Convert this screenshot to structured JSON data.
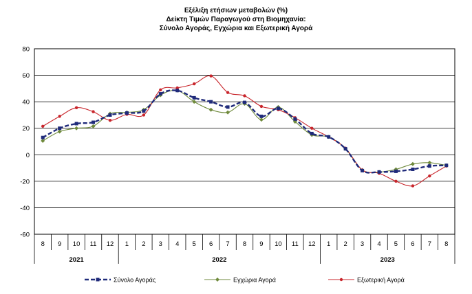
{
  "chart_data": {
    "type": "line",
    "title": [
      "Εξέλιξη ετήσιων μεταβολών (%)",
      "Δείκτη Τιμών Παραγωγού στη Βιομηχανία:",
      "Σύνολο Αγοράς, Εγχώρια και Εξωτερική Αγορά"
    ],
    "xlabel": "",
    "ylabel": "",
    "ylim": [
      -60,
      80
    ],
    "yticks": [
      "80",
      "60",
      "40",
      "20",
      "0",
      "-20",
      "-40",
      "-60"
    ],
    "grid": true,
    "legend": "bottom",
    "categories": [
      "8",
      "9",
      "10",
      "11",
      "12",
      "1",
      "2",
      "3",
      "4",
      "5",
      "6",
      "7",
      "8",
      "9",
      "10",
      "11",
      "12",
      "1",
      "2",
      "3",
      "4",
      "5",
      "6",
      "7",
      "8"
    ],
    "year_groups": [
      {
        "label": "2021",
        "count": 5
      },
      {
        "label": "2022",
        "count": 12
      },
      {
        "label": "2023",
        "count": 8
      }
    ],
    "series": [
      {
        "name": "Σύνολο Αγοράς",
        "color": "#1f2a7a",
        "style": "dashed",
        "values": [
          13,
          20,
          23.5,
          24.5,
          30,
          31.5,
          33,
          46,
          48.5,
          43,
          40,
          36,
          39.5,
          29,
          35,
          27,
          16,
          13.5,
          4.5,
          -12,
          -13,
          -12.5,
          -11,
          -8.5,
          -8
        ]
      },
      {
        "name": "Εγχώρια Αγορά",
        "color": "#6f8a3c",
        "style": "solid",
        "values": [
          10.5,
          17.5,
          20,
          21.5,
          31,
          32,
          34,
          45,
          48.5,
          40,
          34,
          32,
          38.5,
          26.5,
          36,
          25,
          15,
          13.5,
          4.5,
          -11.5,
          -13,
          -11,
          -7,
          -6,
          -8
        ]
      },
      {
        "name": "Εξωτερική Αγορά",
        "color": "#c8252b",
        "style": "solid",
        "values": [
          21.5,
          29,
          35.5,
          32.5,
          26,
          30.5,
          30,
          49,
          50.5,
          53.5,
          59.5,
          47,
          44.5,
          36.5,
          34,
          28,
          20,
          13.5,
          5,
          -11.5,
          -14,
          -20,
          -23.5,
          -16,
          -8.5
        ]
      }
    ]
  }
}
